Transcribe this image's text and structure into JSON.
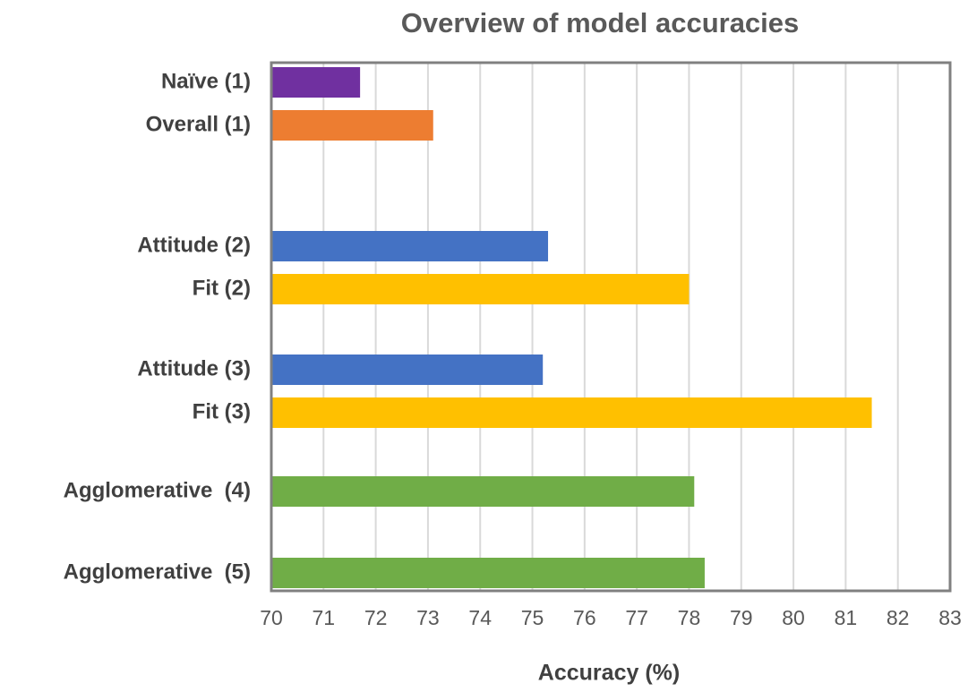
{
  "chart_data": {
    "type": "bar",
    "orientation": "horizontal",
    "title": "Overview of model accuracies",
    "x_label": "Accuracy (%)",
    "categories": [
      "Naïve (1)",
      "Overall (1)",
      "Attitude (2)",
      "Fit (2)",
      "Attitude (3)",
      "Fit (3)",
      "Agglomerative  (4)",
      "Agglomerative  (5)"
    ],
    "values": [
      71.7,
      73.1,
      75.3,
      78.0,
      75.2,
      81.5,
      78.1,
      78.3
    ],
    "colors": [
      "#7030a0",
      "#ed7d31",
      "#4472c4",
      "#ffc000",
      "#4472c4",
      "#ffc000",
      "#70ad47",
      "#70ad47"
    ],
    "xlim": [
      70,
      83
    ],
    "xticks": [
      70,
      71,
      72,
      73,
      74,
      75,
      76,
      77,
      78,
      79,
      80,
      81,
      82,
      83
    ],
    "grid": true
  }
}
